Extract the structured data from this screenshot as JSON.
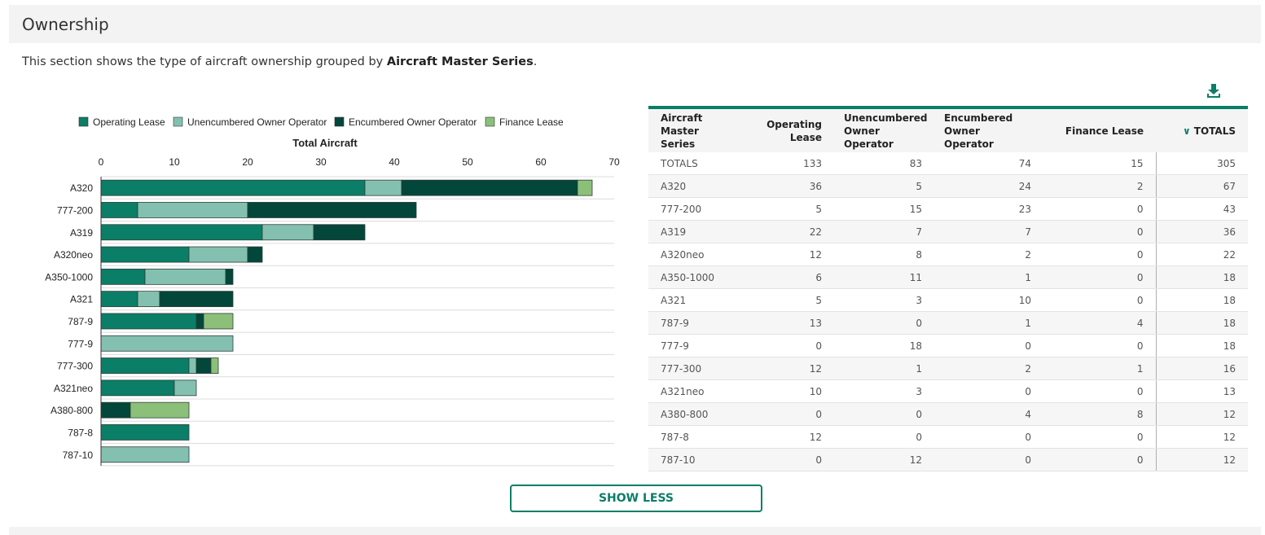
{
  "section": {
    "title": "Ownership",
    "description_prefix": "This section shows the type of aircraft ownership grouped by ",
    "description_bold": "Aircraft Master Series",
    "description_suffix": "."
  },
  "colors": {
    "operating_lease": "#0a7e67",
    "unencumbered_owner_operator": "#84c0b0",
    "encumbered_owner_operator": "#02473a",
    "finance_lease": "#8cc07a",
    "accent": "#0a7e67"
  },
  "download": {
    "icon": "download-icon"
  },
  "chart_data": {
    "type": "bar",
    "orientation": "horizontal",
    "stacked": true,
    "title": "Total Aircraft",
    "xlim": [
      0,
      70
    ],
    "x_ticks": [
      "0",
      "10",
      "20",
      "30",
      "40",
      "50",
      "60",
      "70"
    ],
    "legend_position": "top",
    "categories": [
      "A320",
      "777-200",
      "A319",
      "A320neo",
      "A350-1000",
      "A321",
      "787-9",
      "777-9",
      "777-300",
      "A321neo",
      "A380-800",
      "787-8",
      "787-10"
    ],
    "series": [
      {
        "name": "Operating Lease",
        "color": "#0a7e67",
        "values": [
          36,
          5,
          22,
          12,
          6,
          5,
          13,
          0,
          12,
          10,
          0,
          12,
          0
        ]
      },
      {
        "name": "Unencumbered Owner Operator",
        "color": "#84c0b0",
        "values": [
          5,
          15,
          7,
          8,
          11,
          3,
          0,
          18,
          1,
          3,
          0,
          0,
          12
        ]
      },
      {
        "name": "Encumbered Owner Operator",
        "color": "#02473a",
        "values": [
          24,
          23,
          7,
          2,
          1,
          10,
          1,
          0,
          2,
          0,
          4,
          0,
          0
        ]
      },
      {
        "name": "Finance Lease",
        "color": "#8cc07a",
        "values": [
          2,
          0,
          0,
          0,
          0,
          0,
          4,
          0,
          1,
          0,
          8,
          0,
          0
        ]
      }
    ]
  },
  "table": {
    "headers": {
      "series": "Aircraft Master Series",
      "operating_lease": "Operating Lease",
      "unencumbered": "Unencumbered Owner Operator",
      "encumbered": "Encumbered Owner Operator",
      "finance_lease": "Finance Lease",
      "totals": "TOTALS"
    },
    "sort_icon": "chevron-down-icon",
    "rows": [
      [
        "TOTALS",
        "133",
        "83",
        "74",
        "15",
        "305"
      ],
      [
        "A320",
        "36",
        "5",
        "24",
        "2",
        "67"
      ],
      [
        "777-200",
        "5",
        "15",
        "23",
        "0",
        "43"
      ],
      [
        "A319",
        "22",
        "7",
        "7",
        "0",
        "36"
      ],
      [
        "A320neo",
        "12",
        "8",
        "2",
        "0",
        "22"
      ],
      [
        "A350-1000",
        "6",
        "11",
        "1",
        "0",
        "18"
      ],
      [
        "A321",
        "5",
        "3",
        "10",
        "0",
        "18"
      ],
      [
        "787-9",
        "13",
        "0",
        "1",
        "4",
        "18"
      ],
      [
        "777-9",
        "0",
        "18",
        "0",
        "0",
        "18"
      ],
      [
        "777-300",
        "12",
        "1",
        "2",
        "1",
        "16"
      ],
      [
        "A321neo",
        "10",
        "3",
        "0",
        "0",
        "13"
      ],
      [
        "A380-800",
        "0",
        "0",
        "4",
        "8",
        "12"
      ],
      [
        "787-8",
        "12",
        "0",
        "0",
        "0",
        "12"
      ],
      [
        "787-10",
        "0",
        "12",
        "0",
        "0",
        "12"
      ]
    ]
  },
  "show_less_label": "SHOW LESS"
}
